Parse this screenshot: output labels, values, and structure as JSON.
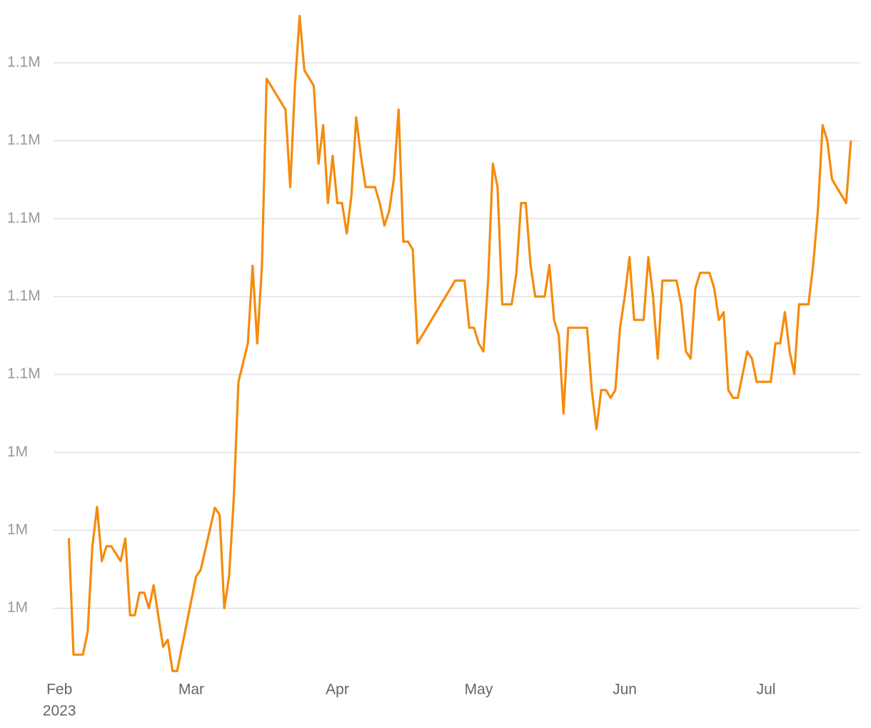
{
  "chart_data": {
    "type": "line",
    "x": [
      "2023-02-03",
      "2023-02-04",
      "2023-02-06",
      "2023-02-07",
      "2023-02-08",
      "2023-02-09",
      "2023-02-10",
      "2023-02-11",
      "2023-02-12",
      "2023-02-14",
      "2023-02-15",
      "2023-02-16",
      "2023-02-17",
      "2023-02-18",
      "2023-02-19",
      "2023-02-20",
      "2023-02-21",
      "2023-02-23",
      "2023-02-24",
      "2023-02-25",
      "2023-02-26",
      "2023-03-02",
      "2023-03-03",
      "2023-03-06",
      "2023-03-07",
      "2023-03-08",
      "2023-03-09",
      "2023-03-10",
      "2023-03-11",
      "2023-03-13",
      "2023-03-14",
      "2023-03-15",
      "2023-03-16",
      "2023-03-17",
      "2023-03-21",
      "2023-03-22",
      "2023-03-23",
      "2023-03-24",
      "2023-03-25",
      "2023-03-27",
      "2023-03-28",
      "2023-03-29",
      "2023-03-30",
      "2023-03-31",
      "2023-04-01",
      "2023-04-02",
      "2023-04-03",
      "2023-04-04",
      "2023-04-05",
      "2023-04-06",
      "2023-04-07",
      "2023-04-09",
      "2023-04-10",
      "2023-04-11",
      "2023-04-12",
      "2023-04-13",
      "2023-04-14",
      "2023-04-15",
      "2023-04-16",
      "2023-04-17",
      "2023-04-18",
      "2023-04-26",
      "2023-04-28",
      "2023-04-29",
      "2023-04-30",
      "2023-05-01",
      "2023-05-02",
      "2023-05-03",
      "2023-05-04",
      "2023-05-05",
      "2023-05-06",
      "2023-05-08",
      "2023-05-09",
      "2023-05-10",
      "2023-05-11",
      "2023-05-12",
      "2023-05-13",
      "2023-05-15",
      "2023-05-16",
      "2023-05-17",
      "2023-05-18",
      "2023-05-19",
      "2023-05-20",
      "2023-05-24",
      "2023-05-25",
      "2023-05-26",
      "2023-05-27",
      "2023-05-28",
      "2023-05-29",
      "2023-05-30",
      "2023-05-31",
      "2023-06-01",
      "2023-06-02",
      "2023-06-03",
      "2023-06-05",
      "2023-06-06",
      "2023-06-07",
      "2023-06-08",
      "2023-06-09",
      "2023-06-12",
      "2023-06-13",
      "2023-06-14",
      "2023-06-15",
      "2023-06-16",
      "2023-06-17",
      "2023-06-19",
      "2023-06-20",
      "2023-06-21",
      "2023-06-22",
      "2023-06-23",
      "2023-06-24",
      "2023-06-25",
      "2023-06-27",
      "2023-06-28",
      "2023-06-29",
      "2023-07-02",
      "2023-07-03",
      "2023-07-04",
      "2023-07-05",
      "2023-07-06",
      "2023-07-07",
      "2023-07-08",
      "2023-07-10",
      "2023-07-11",
      "2023-07-12",
      "2023-07-13",
      "2023-07-14",
      "2023-07-15",
      "2023-07-18",
      "2023-07-19"
    ],
    "values": [
      1018000,
      988100,
      988100,
      994000,
      1015900,
      1026000,
      1012100,
      1015900,
      1015900,
      1012100,
      1017900,
      998200,
      998200,
      1004000,
      1004000,
      1000000,
      1005900,
      990100,
      991900,
      983900,
      983900,
      1008100,
      1009900,
      1025800,
      1024000,
      1000000,
      1008100,
      1028000,
      1058100,
      1068000,
      1087900,
      1068000,
      1087900,
      1135900,
      1128000,
      1108100,
      1134100,
      1152000,
      1138100,
      1134100,
      1114100,
      1124000,
      1104000,
      1116100,
      1104000,
      1104000,
      1096200,
      1106000,
      1126000,
      1116100,
      1108100,
      1108100,
      1104000,
      1098200,
      1102000,
      1110100,
      1128000,
      1094100,
      1094100,
      1092100,
      1068000,
      1084100,
      1084100,
      1072000,
      1072000,
      1068000,
      1065900,
      1084100,
      1114100,
      1108100,
      1078000,
      1078000,
      1086100,
      1104000,
      1104000,
      1088100,
      1080000,
      1080000,
      1088100,
      1074000,
      1070000,
      1050000,
      1072000,
      1072000,
      1056000,
      1046000,
      1056000,
      1056000,
      1054000,
      1056000,
      1072000,
      1080000,
      1090100,
      1074000,
      1074000,
      1090100,
      1080000,
      1064100,
      1084100,
      1084100,
      1078000,
      1065900,
      1064100,
      1082100,
      1086100,
      1086100,
      1082100,
      1074000,
      1076000,
      1056000,
      1054000,
      1054000,
      1065900,
      1064100,
      1058100,
      1058100,
      1068000,
      1068000,
      1076000,
      1065900,
      1060100,
      1078000,
      1078000,
      1088100,
      1102000,
      1124000,
      1120000,
      1110100,
      1104000,
      1120000
    ],
    "color": "#f58b0c",
    "xlim": [
      "2023-01-30",
      "2023-07-21"
    ],
    "xticks": [
      {
        "value": "2023-02-01",
        "label": "Feb"
      },
      {
        "value": "2023-03-01",
        "label": "Mar"
      },
      {
        "value": "2023-04-01",
        "label": "Apr"
      },
      {
        "value": "2023-05-01",
        "label": "May"
      },
      {
        "value": "2023-06-01",
        "label": "Jun"
      },
      {
        "value": "2023-07-01",
        "label": "Jul"
      }
    ],
    "x_year": "2023",
    "ylim": [
      983000,
      1153000
    ],
    "yticks": [
      {
        "value": 1000000,
        "label": "1M"
      },
      {
        "value": 1020000,
        "label": "1M"
      },
      {
        "value": 1040000,
        "label": "1M"
      },
      {
        "value": 1060000,
        "label": "1.1M"
      },
      {
        "value": 1080000,
        "label": "1.1M"
      },
      {
        "value": 1100000,
        "label": "1.1M"
      },
      {
        "value": 1120000,
        "label": "1.1M"
      },
      {
        "value": 1140000,
        "label": "1.1M"
      }
    ],
    "grid": true
  }
}
